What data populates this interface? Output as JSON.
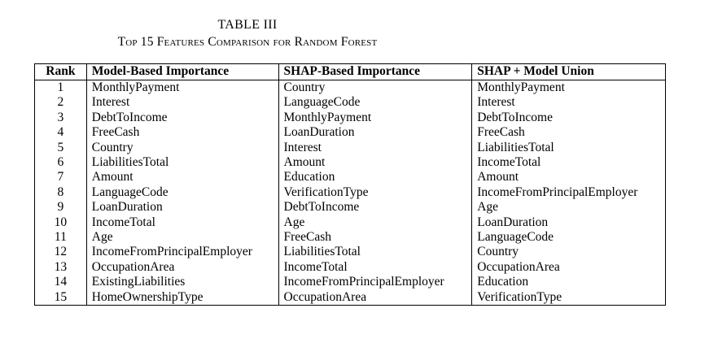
{
  "caption": {
    "table_number": "TABLE III",
    "title": "Top 15 Features Comparison for Random Forest"
  },
  "table": {
    "headers": [
      "Rank",
      "Model-Based Importance",
      "SHAP-Based Importance",
      "SHAP + Model Union"
    ],
    "rows": [
      [
        "1",
        "MonthlyPayment",
        "Country",
        "MonthlyPayment"
      ],
      [
        "2",
        "Interest",
        "LanguageCode",
        "Interest"
      ],
      [
        "3",
        "DebtToIncome",
        "MonthlyPayment",
        "DebtToIncome"
      ],
      [
        "4",
        "FreeCash",
        "LoanDuration",
        "FreeCash"
      ],
      [
        "5",
        "Country",
        "Interest",
        "LiabilitiesTotal"
      ],
      [
        "6",
        "LiabilitiesTotal",
        "Amount",
        "IncomeTotal"
      ],
      [
        "7",
        "Amount",
        "Education",
        "Amount"
      ],
      [
        "8",
        "LanguageCode",
        "VerificationType",
        "IncomeFromPrincipalEmployer"
      ],
      [
        "9",
        "LoanDuration",
        "DebtToIncome",
        "Age"
      ],
      [
        "10",
        "IncomeTotal",
        "Age",
        "LoanDuration"
      ],
      [
        "11",
        "Age",
        "FreeCash",
        "LanguageCode"
      ],
      [
        "12",
        "IncomeFromPrincipalEmployer",
        "LiabilitiesTotal",
        "Country"
      ],
      [
        "13",
        "OccupationArea",
        "IncomeTotal",
        "OccupationArea"
      ],
      [
        "14",
        "ExistingLiabilities",
        "IncomeFromPrincipalEmployer",
        "Education"
      ],
      [
        "15",
        "HomeOwnershipType",
        "OccupationArea",
        "VerificationType"
      ]
    ]
  }
}
